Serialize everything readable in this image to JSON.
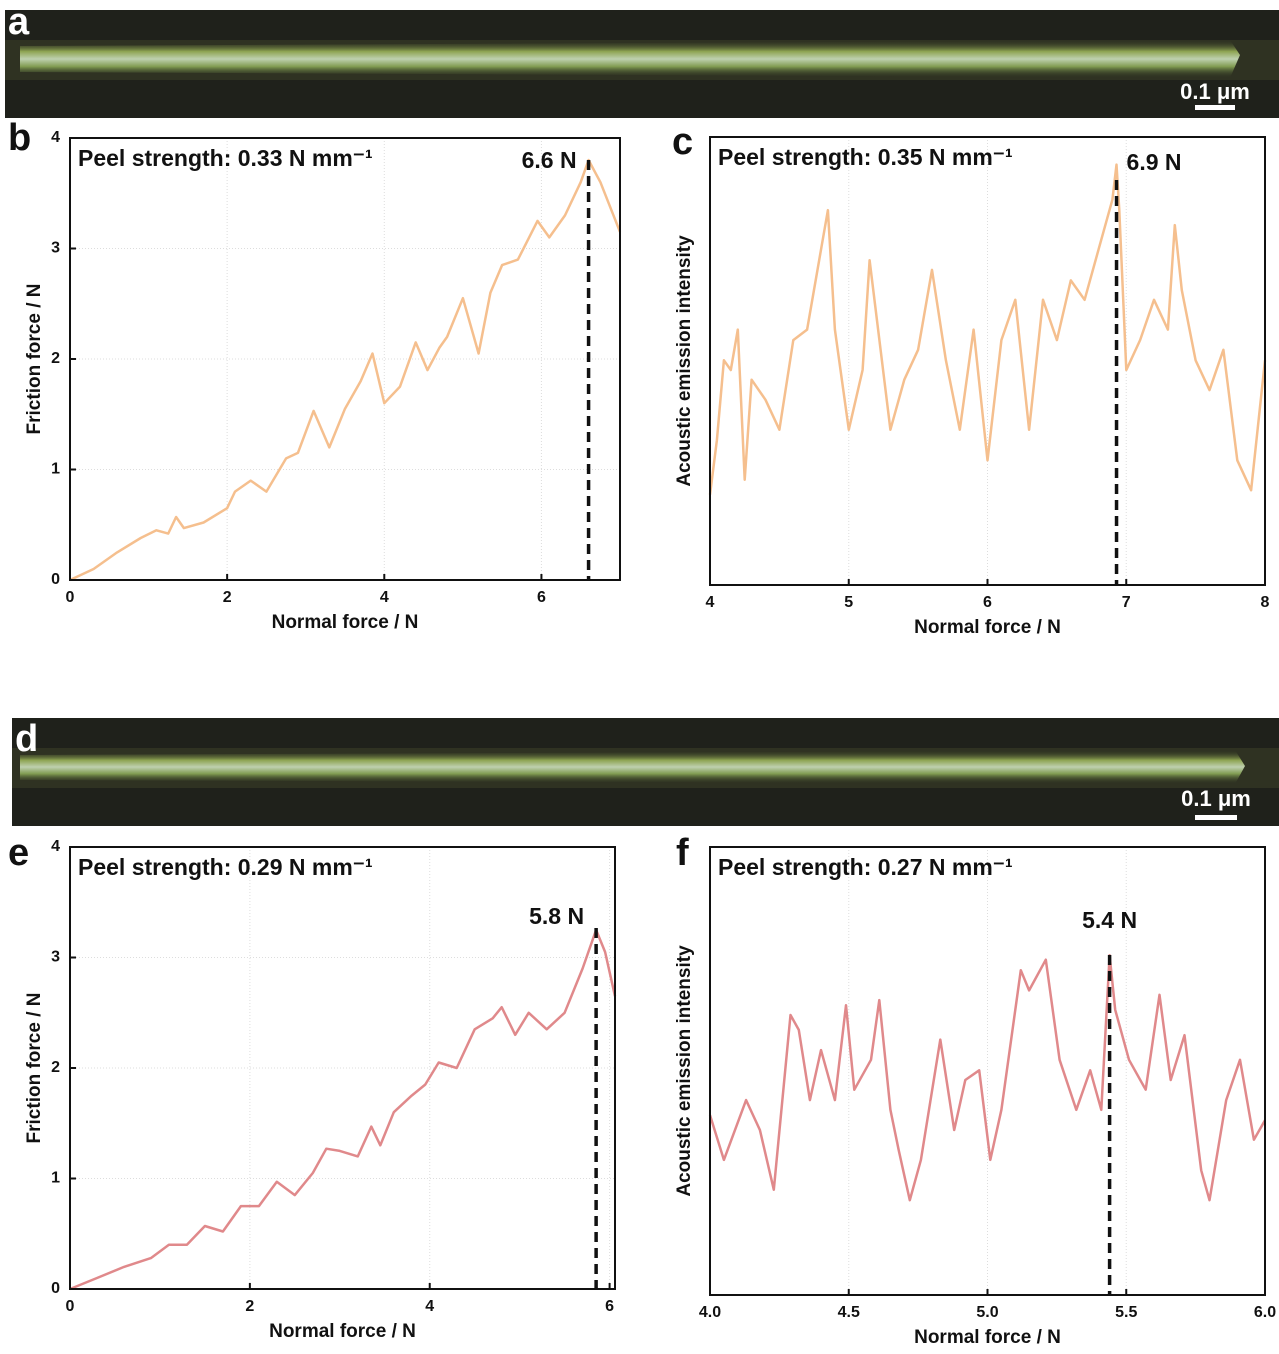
{
  "images": [
    {
      "label": "a",
      "scale_bar": "0.1 μm"
    },
    {
      "label": "d",
      "scale_bar": "0.1 μm"
    }
  ],
  "chart_data": [
    {
      "type": "line",
      "panel_label": "b",
      "annotation": "Peel strength: 0.33 N mm⁻¹",
      "xlabel": "Normal force / N",
      "ylabel": "Friction force / N",
      "color": "#f5bf8e",
      "grid": true,
      "xlim": [
        0,
        7
      ],
      "ylim": [
        0,
        4
      ],
      "xticks": [
        0,
        2,
        4,
        6
      ],
      "yticks": [
        0,
        1,
        2,
        3,
        4
      ],
      "marker": {
        "x": 6.6,
        "label": "6.6 N"
      },
      "x": [
        0,
        0.3,
        0.6,
        0.9,
        1.1,
        1.25,
        1.35,
        1.45,
        1.7,
        2.0,
        2.1,
        2.3,
        2.5,
        2.75,
        2.9,
        3.1,
        3.3,
        3.5,
        3.7,
        3.85,
        4.0,
        4.2,
        4.4,
        4.55,
        4.7,
        4.8,
        5.0,
        5.2,
        5.35,
        5.5,
        5.7,
        5.95,
        6.1,
        6.3,
        6.5,
        6.6,
        6.75,
        7.0
      ],
      "values": [
        0,
        0.1,
        0.25,
        0.38,
        0.45,
        0.42,
        0.57,
        0.47,
        0.52,
        0.65,
        0.8,
        0.9,
        0.8,
        1.1,
        1.15,
        1.53,
        1.2,
        1.55,
        1.8,
        2.05,
        1.6,
        1.75,
        2.15,
        1.9,
        2.1,
        2.2,
        2.55,
        2.05,
        2.6,
        2.85,
        2.9,
        3.25,
        3.1,
        3.3,
        3.6,
        3.8,
        3.6,
        3.15
      ]
    },
    {
      "type": "line",
      "panel_label": "c",
      "annotation": "Peel strength: 0.35 N mm⁻¹",
      "xlabel": "Normal force / N",
      "ylabel": "Acoustic emission intensity",
      "color": "#f5bf8e",
      "grid": true,
      "xlim": [
        4,
        8
      ],
      "ylim": [
        0,
        6
      ],
      "xticks": [
        4,
        5,
        6,
        7,
        8
      ],
      "marker": {
        "x": 6.93,
        "label": "6.9 N"
      },
      "x": [
        4.0,
        4.05,
        4.1,
        4.15,
        4.2,
        4.25,
        4.3,
        4.4,
        4.5,
        4.6,
        4.7,
        4.8,
        4.85,
        4.9,
        5.0,
        5.1,
        5.15,
        5.3,
        5.4,
        5.5,
        5.6,
        5.7,
        5.8,
        5.9,
        6.0,
        6.1,
        6.2,
        6.3,
        6.4,
        6.5,
        6.6,
        6.7,
        6.8,
        6.9,
        6.93,
        6.95,
        7.0,
        7.1,
        7.2,
        7.3,
        7.35,
        7.4,
        7.5,
        7.6,
        7.7,
        7.8,
        7.9,
        8.0
      ],
      "values": [
        1.21,
        1.94,
        3.01,
        2.88,
        3.42,
        1.41,
        2.75,
        2.48,
        2.08,
        3.28,
        3.42,
        4.49,
        5.02,
        3.42,
        2.08,
        2.88,
        4.35,
        2.08,
        2.75,
        3.15,
        4.22,
        3.01,
        2.08,
        3.42,
        1.67,
        3.28,
        3.82,
        2.08,
        3.82,
        3.28,
        4.08,
        3.82,
        4.49,
        5.16,
        5.63,
        5.02,
        2.88,
        3.28,
        3.82,
        3.42,
        4.82,
        3.95,
        3.01,
        2.61,
        3.15,
        1.67,
        1.27,
        3.01
      ]
    },
    {
      "type": "line",
      "panel_label": "e",
      "annotation": "Peel strength: 0.29 N mm⁻¹",
      "xlabel": "Normal force / N",
      "ylabel": "Friction force / N",
      "color": "#e0898b",
      "grid": true,
      "xlim": [
        0,
        6.06
      ],
      "ylim": [
        0,
        4
      ],
      "xticks": [
        0,
        2,
        4,
        6
      ],
      "yticks": [
        0,
        1,
        2,
        3,
        4
      ],
      "marker": {
        "x": 5.85,
        "label": "5.8 N"
      },
      "x": [
        0,
        0.3,
        0.6,
        0.9,
        1.1,
        1.3,
        1.5,
        1.7,
        1.9,
        2.1,
        2.3,
        2.5,
        2.7,
        2.85,
        3.0,
        3.2,
        3.35,
        3.45,
        3.6,
        3.8,
        3.95,
        4.1,
        4.3,
        4.5,
        4.7,
        4.8,
        4.95,
        5.1,
        5.3,
        5.5,
        5.7,
        5.85,
        5.95,
        6.06
      ],
      "values": [
        0,
        0.1,
        0.2,
        0.28,
        0.4,
        0.4,
        0.57,
        0.52,
        0.75,
        0.75,
        0.97,
        0.85,
        1.05,
        1.27,
        1.25,
        1.2,
        1.47,
        1.3,
        1.6,
        1.75,
        1.85,
        2.05,
        2.0,
        2.35,
        2.45,
        2.55,
        2.3,
        2.5,
        2.35,
        2.5,
        2.9,
        3.25,
        3.05,
        2.65
      ]
    },
    {
      "type": "line",
      "panel_label": "f",
      "annotation": "Peel strength: 0.27 N mm⁻¹",
      "xlabel": "Normal force / N",
      "ylabel": "Acoustic emission intensity",
      "color": "#e0898b",
      "grid": true,
      "xlim": [
        4,
        6
      ],
      "ylim": [
        0,
        6
      ],
      "xticks": [
        {
          "value": 4,
          "label": "4.0"
        },
        {
          "value": 4.5,
          "label": "4.5"
        },
        {
          "value": 5,
          "label": "5.0"
        },
        {
          "value": 5.5,
          "label": "5.5"
        },
        {
          "value": 6,
          "label": "6.0"
        }
      ],
      "marker": {
        "x": 5.44,
        "label": "5.4 N"
      },
      "x": [
        4.0,
        4.05,
        4.13,
        4.18,
        4.23,
        4.29,
        4.32,
        4.36,
        4.4,
        4.45,
        4.49,
        4.52,
        4.58,
        4.61,
        4.65,
        4.68,
        4.72,
        4.76,
        4.83,
        4.88,
        4.92,
        4.97,
        5.01,
        5.05,
        5.12,
        5.15,
        5.21,
        5.26,
        5.32,
        5.37,
        5.41,
        5.44,
        5.46,
        5.51,
        5.57,
        5.62,
        5.66,
        5.71,
        5.77,
        5.8,
        5.86,
        5.91,
        5.96,
        6.0
      ],
      "values": [
        2.41,
        1.81,
        2.61,
        2.21,
        1.41,
        3.75,
        3.55,
        2.61,
        3.28,
        2.61,
        3.88,
        2.75,
        3.15,
        3.95,
        2.48,
        1.94,
        1.27,
        1.81,
        3.42,
        2.21,
        2.88,
        3.01,
        1.81,
        2.48,
        4.35,
        4.08,
        4.49,
        3.15,
        2.48,
        3.01,
        2.48,
        4.55,
        3.82,
        3.15,
        2.75,
        4.02,
        2.88,
        3.48,
        1.67,
        1.27,
        2.61,
        3.15,
        2.08,
        2.34
      ]
    }
  ]
}
